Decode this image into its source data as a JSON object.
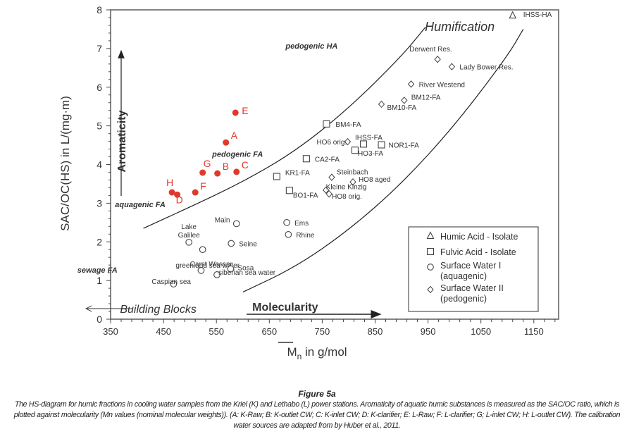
{
  "chart_data": {
    "type": "scatter",
    "title": "",
    "xlabel": "Mn in g/mol",
    "ylabel": "SAC/OC(HS) in L/(mg·m)",
    "xlim": [
      350,
      1195
    ],
    "ylim": [
      0,
      8
    ],
    "x_ticks": [
      350,
      450,
      550,
      650,
      750,
      850,
      950,
      1050,
      1150
    ],
    "x_tick_labels": [
      "350",
      "450",
      "550",
      "650",
      "750",
      "850",
      "950",
      "1050",
      "1150"
    ],
    "y_ticks": [
      0,
      1,
      2,
      3,
      4,
      5,
      6,
      7,
      8
    ],
    "y_tick_labels": [
      "0",
      "1",
      "2",
      "3",
      "4",
      "5",
      "6",
      "7",
      "8"
    ],
    "grid": false,
    "legend": {
      "placement": "bottom-right",
      "entries": [
        {
          "marker": "triangle",
          "label": "Humic Acid - Isolate"
        },
        {
          "marker": "square",
          "label": "Fulvic Acid - Isolate"
        },
        {
          "marker": "circle",
          "label": "Surface Water I (aquagenic)"
        },
        {
          "marker": "diamond",
          "label": "Surface Water II (pedogenic)"
        }
      ]
    },
    "series": [
      {
        "name": "Cooling water samples",
        "marker": "filled-circle",
        "color": "#e0392b",
        "points": [
          {
            "label": "A",
            "x": 568,
            "y": 4.57
          },
          {
            "label": "B",
            "x": 552,
            "y": 3.77
          },
          {
            "label": "C",
            "x": 588,
            "y": 3.81
          },
          {
            "label": "D",
            "x": 476,
            "y": 3.22
          },
          {
            "label": "E",
            "x": 586,
            "y": 5.34
          },
          {
            "label": "F",
            "x": 510,
            "y": 3.28
          },
          {
            "label": "G",
            "x": 524,
            "y": 3.79
          },
          {
            "label": "H",
            "x": 466,
            "y": 3.28
          }
        ]
      },
      {
        "name": "Humic Acid - Isolate",
        "marker": "triangle",
        "points": [
          {
            "label": "IHSS-HA",
            "x": 1110,
            "y": 7.85
          }
        ]
      },
      {
        "name": "Fulvic Acid - Isolate",
        "marker": "square",
        "points": [
          {
            "label": "BM4-FA",
            "x": 758,
            "y": 5.05
          },
          {
            "label": "IHSS-FA",
            "x": 828,
            "y": 4.53
          },
          {
            "label": "NOR1-FA",
            "x": 862,
            "y": 4.51
          },
          {
            "label": "HO3-FA",
            "x": 812,
            "y": 4.37
          },
          {
            "label": "CA2-FA",
            "x": 720,
            "y": 4.15
          },
          {
            "label": "KR1-FA",
            "x": 664,
            "y": 3.69
          },
          {
            "label": "BO1-FA",
            "x": 688,
            "y": 3.33
          }
        ]
      },
      {
        "name": "Surface Water I (aquagenic)",
        "marker": "circle",
        "points": [
          {
            "label": "Main",
            "x": 588,
            "y": 2.47
          },
          {
            "label": "Ems",
            "x": 683,
            "y": 2.5
          },
          {
            "label": "Rhine",
            "x": 686,
            "y": 2.19
          },
          {
            "label": "Lake Galilee",
            "x": 498,
            "y": 1.99
          },
          {
            "label": "Seine",
            "x": 578,
            "y": 1.96
          },
          {
            "label": "Carst Wasser",
            "x": 524,
            "y": 1.8
          },
          {
            "label": "greenland sea water",
            "x": 521,
            "y": 1.26
          },
          {
            "label": "Sosa",
            "x": 577,
            "y": 1.3
          },
          {
            "label": "siberian sea water",
            "x": 551,
            "y": 1.15
          },
          {
            "label": "Caspian sea",
            "x": 469,
            "y": 0.91
          }
        ]
      },
      {
        "name": "Surface Water II (pedogenic)",
        "marker": "diamond",
        "points": [
          {
            "label": "Derwent Res.",
            "x": 968,
            "y": 6.72
          },
          {
            "label": "Lady Bower Res.",
            "x": 995,
            "y": 6.53
          },
          {
            "label": "River Westend",
            "x": 918,
            "y": 6.08
          },
          {
            "label": "BM12-FA",
            "x": 905,
            "y": 5.66
          },
          {
            "label": "BM10-FA",
            "x": 862,
            "y": 5.56
          },
          {
            "label": "HO6 orig.",
            "x": 798,
            "y": 4.59
          },
          {
            "label": "Steinbach",
            "x": 768,
            "y": 3.67
          },
          {
            "label": "HO8 aged",
            "x": 808,
            "y": 3.55
          },
          {
            "label": "Kleine Kinzig",
            "x": 757,
            "y": 3.34
          },
          {
            "label": "HO8 orig.",
            "x": 763,
            "y": 3.24
          }
        ]
      }
    ],
    "curves": [
      {
        "name": "upper boundary (pedogenic HA / pedogenic FA / aquagenic FA)",
        "points": [
          [
            412,
            2.35
          ],
          [
            500,
            2.9
          ],
          [
            600,
            3.55
          ],
          [
            700,
            4.35
          ],
          [
            800,
            5.45
          ],
          [
            900,
            6.8
          ],
          [
            945,
            7.55
          ]
        ]
      },
      {
        "name": "lower boundary (Humification)",
        "points": [
          [
            600,
            0.7
          ],
          [
            700,
            1.35
          ],
          [
            800,
            2.3
          ],
          [
            900,
            3.5
          ],
          [
            1000,
            5.0
          ],
          [
            1100,
            6.8
          ],
          [
            1130,
            7.5
          ]
        ]
      }
    ],
    "annotations": [
      {
        "text": "Humification",
        "x": 1010,
        "y": 7.45
      },
      {
        "text": "pedogenic HA",
        "x": 730,
        "y": 7.0
      },
      {
        "text": "pedogenic FA",
        "x": 590,
        "y": 4.2
      },
      {
        "text": "aquagenic FA",
        "x": 406,
        "y": 2.9
      },
      {
        "text": "sewage FA",
        "x": 325,
        "y": 1.2
      },
      {
        "text": "Aromaticity",
        "x": 370,
        "y": 4.6
      },
      {
        "text": "Building Blocks",
        "x": 440,
        "y": 0.16
      },
      {
        "text": "Molecularity",
        "x": 680,
        "y": 0.22
      }
    ]
  },
  "caption": {
    "title": "Figure 5a",
    "text": "The HS-diagram for humic fractions in cooling water samples from the Kriel (K) and Lethabo (L) power stations. Aromaticity of aquatic humic substances is measured as the SAC/OC ratio, which is plotted against molecularity (Mn values (nominal molecular weights)). (A: K-Raw; B:  K-outlet CW; C: K-inlet CW; D: K-clarifier; E: L-Raw; F: L-clarifier; G; L-inlet CW; H: L-outlet CW). The calibration water sources are adapted from by Huber et al., 2011."
  },
  "colors": {
    "sample": "#e0392b",
    "axis": "#555555",
    "text": "#222222"
  }
}
